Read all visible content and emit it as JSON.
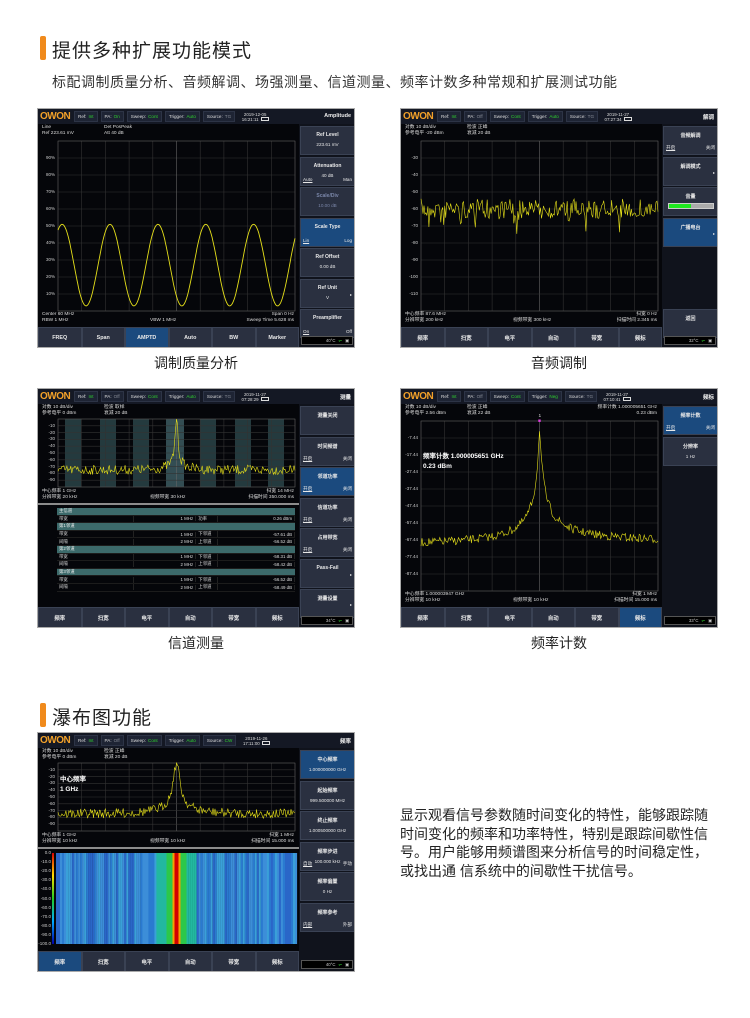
{
  "section1": {
    "title": "提供多种扩展功能模式",
    "subtitle": "标配调制质量分析、音频解调、场强测量、信道测量、频率计数多种常规和扩展测试功能"
  },
  "section2": {
    "title": "瀑布图功能",
    "description": "显示观看信号参数随时间变化的特性，能够跟踪随时间变化的频率和功率特性，特别是跟踪间歇性信号。用户能够用频谱图来分析信号的时间稳定性，或找出通 信系统中的间歇性干扰信号。"
  },
  "colors": {
    "accent": "#f08a1c",
    "trace": "#e6e01a",
    "active_key": "#1b4a7e",
    "status_on": "#2fd12f"
  },
  "screens": [
    {
      "id": "s1",
      "caption": "调制质量分析",
      "logo": "OWON",
      "layout": "full",
      "trace": "sine",
      "status": [
        [
          "Ref:",
          "Int",
          true
        ],
        [
          "PA:",
          "On",
          true
        ],
        [
          "Sweep:",
          "Cont",
          true
        ],
        [
          "Trigger:",
          "Auto",
          true
        ],
        [
          "Source:",
          "TG",
          false
        ]
      ],
      "date": "2019-12-05",
      "time": "16:21:11",
      "panel_title": "Amplitude",
      "header_left": [
        "Line",
        "Ref 223.61 mV"
      ],
      "header_mid": [
        "Det PosPeak",
        "Att 40 dB"
      ],
      "footer_left": [
        "Center 60 MHz",
        "RBW 1 MHz"
      ],
      "footer_mid": "VBW 1 MHz",
      "footer_right": [
        "Span 0 Hz",
        "Sweep Time 5.628 ms"
      ],
      "yticks": [
        "90%",
        "80%",
        "70%",
        "60%",
        "50%",
        "40%",
        "30%",
        "20%",
        "10%"
      ],
      "softkeys": [
        {
          "title": "Ref Level",
          "value": "223.61 mV"
        },
        {
          "title": "Attenuation",
          "value": "40 dB",
          "left": "Auto",
          "right": "Man"
        },
        {
          "title": "Scale/Div",
          "value": "10.00 dB",
          "dim": true
        },
        {
          "title": "Scale Type",
          "left": "Lin",
          "right": "Log",
          "active": true
        },
        {
          "title": "Ref Offset",
          "value": "0.00 dB"
        },
        {
          "title": "Ref Unit",
          "value": "V",
          "arrow": true
        },
        {
          "title": "Preamplifier",
          "left": "On",
          "right": "Off"
        }
      ],
      "buttons": [
        "FREQ",
        "Span",
        "AMPTD",
        "Auto",
        "BW",
        "Marker"
      ],
      "active_button": 2,
      "temperature": "40°C"
    },
    {
      "id": "s2",
      "caption": "音频调制",
      "logo": "OWON",
      "layout": "full",
      "trace": "noise",
      "status": [
        [
          "Ref:",
          "Int",
          true
        ],
        [
          "PA:",
          "Off",
          false
        ],
        [
          "Sweep:",
          "Cont",
          true
        ],
        [
          "Trigger:",
          "Auto",
          true
        ],
        [
          "Source:",
          "TG",
          false
        ]
      ],
      "date": "2019-11-27",
      "time": "07:27:34",
      "panel_title": "解调",
      "header_left": [
        "对数 10 dB/div",
        "参考电平 -20 dBm"
      ],
      "header_mid": [
        "检波 正峰",
        "衰减 20 dB"
      ],
      "footer_left": [
        "中心频率 87.6 MHz",
        "分辨带宽 200 kHz"
      ],
      "footer_mid": "视频带宽 300 kHz",
      "footer_right": [
        "扫宽 0 Hz",
        "扫描时间 2.345 ms"
      ],
      "yticks": [
        "-30",
        "-40",
        "-50",
        "-60",
        "-70",
        "-80",
        "-90",
        "-100",
        "-110"
      ],
      "softkeys": [
        {
          "title": "音频解调",
          "left": "开启",
          "right": "关闭"
        },
        {
          "title": "解调模式",
          "arrow": true
        },
        {
          "title": "音量",
          "volume": 0.5
        },
        {
          "title": "广播电台",
          "arrow": true,
          "active": true
        },
        {
          "empty": true
        },
        {
          "empty": true
        },
        {
          "title": "返回"
        }
      ],
      "buttons": [
        "频率",
        "扫宽",
        "电平",
        "自动",
        "带宽",
        "频标"
      ],
      "active_button": -1,
      "temperature": "32°C"
    },
    {
      "id": "s3",
      "caption": "信道测量",
      "logo": "OWON",
      "layout": "table",
      "trace": "channel",
      "status": [
        [
          "Ref:",
          "Int",
          true
        ],
        [
          "PA:",
          "Off",
          false
        ],
        [
          "Sweep:",
          "Cont",
          true
        ],
        [
          "Trigger:",
          "Auto",
          true
        ],
        [
          "Source:",
          "TG",
          false
        ]
      ],
      "date": "2019-11-27",
      "time": "07:28:29",
      "panel_title": "测量",
      "header_left": [
        "对数 10 dB/div",
        "参考电平 0 dBm"
      ],
      "header_mid": [
        "检波 取样",
        "衰减 20 dB"
      ],
      "footer_left": [
        "中心频率 1 GHz",
        "分辨带宽 20 kHz"
      ],
      "footer_mid": "视频带宽 30 kHz",
      "footer_right": [
        "扫宽 14 MHz",
        "扫描时间 350.000 ms"
      ],
      "yticks": [
        "-10",
        "-20",
        "-30",
        "-40",
        "-50",
        "-60",
        "-70",
        "-80",
        "-90"
      ],
      "table": [
        {
          "header": "主信道"
        },
        [
          "带宽",
          "1 MHz",
          "功率",
          "0.26 dBm"
        ],
        {
          "header": "第1邻道"
        },
        [
          "带宽",
          "1 MHz",
          "下邻道",
          "-57.61 dB"
        ],
        [
          "间隔",
          "2 MHz",
          "上邻道",
          "-56.52 dB"
        ],
        {
          "header": "第2邻道"
        },
        [
          "带宽",
          "1 MHz",
          "下邻道",
          "-58.31 dB"
        ],
        [
          "间隔",
          "2 MHz",
          "上邻道",
          "-58.42 dB"
        ],
        {
          "header": "第3邻道"
        },
        [
          "带宽",
          "1 MHz",
          "下邻道",
          "-56.52 dB"
        ],
        [
          "间隔",
          "2 MHz",
          "上邻道",
          "-58.49 dB"
        ]
      ],
      "softkeys": [
        {
          "title": "测量关闭"
        },
        {
          "title": "时间频谱",
          "left": "开启",
          "right": "关闭"
        },
        {
          "title": "邻道功率",
          "left": "开启",
          "right": "关闭",
          "active": true
        },
        {
          "title": "信道功率",
          "left": "开启",
          "right": "关闭"
        },
        {
          "title": "占用带宽",
          "left": "开启",
          "right": "关闭"
        },
        {
          "title": "Pass-Fail",
          "arrow": true
        },
        {
          "title": "测量设置",
          "arrow": true
        }
      ],
      "buttons": [
        "频率",
        "扫宽",
        "电平",
        "自动",
        "带宽",
        "频标"
      ],
      "active_button": -1,
      "temperature": "34°C"
    },
    {
      "id": "s4",
      "caption": "频率计数",
      "logo": "OWON",
      "layout": "full",
      "trace": "peak",
      "status": [
        [
          "Ref:",
          "Int",
          true
        ],
        [
          "PA:",
          "Off",
          false
        ],
        [
          "Sweep:",
          "Cont",
          true
        ],
        [
          "Trigger:",
          "Neg",
          true
        ],
        [
          "Source:",
          "TG",
          false
        ]
      ],
      "date": "2019-11-27",
      "time": "07:10:41",
      "panel_title": "频标",
      "header_left": [
        "对数 10 dB/div",
        "参考电平 2.56 dBm"
      ],
      "header_mid": [
        "检波 正峰",
        "衰减 22 dB"
      ],
      "header_right": [
        "频率计数 1.000005651 GHz",
        "0.23 dBm"
      ],
      "overlay": [
        "频率计数  1.000005651 GHz",
        "0.23 dBm"
      ],
      "marker": "1",
      "footer_left": [
        "中心频率 1.000003947 GHz",
        "分辨带宽 10 kHz"
      ],
      "footer_mid": "视频带宽 10 kHz",
      "footer_right": [
        "扫宽 1 MHz",
        "扫描时间 15.000 ms"
      ],
      "yticks": [
        "-7.44",
        "-17.44",
        "-27.44",
        "-37.44",
        "-47.44",
        "-57.44",
        "-67.44",
        "-77.44",
        "-87.44"
      ],
      "softkeys": [
        {
          "title": "频率计数",
          "left": "开启",
          "right": "关闭",
          "active": true
        },
        {
          "title": "分辨率",
          "value": "1 Hz"
        }
      ],
      "buttons": [
        "频率",
        "扫宽",
        "电平",
        "自动",
        "带宽",
        "频标"
      ],
      "active_button": 5,
      "temperature": "33°C"
    },
    {
      "id": "s5",
      "caption": "",
      "logo": "OWON",
      "layout": "waterfall",
      "trace": "narrow",
      "status": [
        [
          "Ref:",
          "Int",
          true
        ],
        [
          "PA:",
          "Off",
          false
        ],
        [
          "Sweep:",
          "Cont",
          true
        ],
        [
          "Trigger:",
          "Auto",
          true
        ],
        [
          "Source:",
          "CW",
          true
        ]
      ],
      "date": "2019-11-26",
      "time": "17:11:00",
      "panel_title": "频率",
      "header_left": [
        "对数 10 dB/div",
        "参考电平 0 dBm"
      ],
      "header_mid": [
        "检波 正峰",
        "衰减 20 dB"
      ],
      "overlay": [
        "中心频率",
        "1 GHz"
      ],
      "footer_left": [
        "中心频率 1 GHz",
        "分辨带宽 10 kHz"
      ],
      "footer_mid": "视频带宽 10 kHz",
      "footer_right": [
        "扫宽 1 MHz",
        "扫描时间 15.000 ms"
      ],
      "yticks": [
        "-10",
        "-20",
        "-30",
        "-40",
        "-50",
        "-60",
        "-70",
        "-80",
        "-90"
      ],
      "waterfall_ticks": [
        "0.0",
        "-10.0",
        "-20.0",
        "-30.0",
        "-40.0",
        "-50.0",
        "-60.0",
        "-70.0",
        "-80.0",
        "-90.0",
        "-100.0"
      ],
      "softkeys": [
        {
          "title": "中心频率",
          "value": "1.000000000 GHz",
          "active": true
        },
        {
          "title": "起始频率",
          "value": "999.500000 MHz"
        },
        {
          "title": "终止频率",
          "value": "1.000500000 GHz"
        },
        {
          "title": "频率步进",
          "value": "100.000 kHz",
          "left": "自动",
          "right": "手动"
        },
        {
          "title": "频率偏置",
          "value": "0 Hz"
        },
        {
          "title": "频率参考",
          "left": "内部",
          "right": "外部"
        }
      ],
      "buttons": [
        "频率",
        "扫宽",
        "电平",
        "自动",
        "带宽",
        "频标"
      ],
      "active_button": 0,
      "temperature": "40°C"
    }
  ]
}
